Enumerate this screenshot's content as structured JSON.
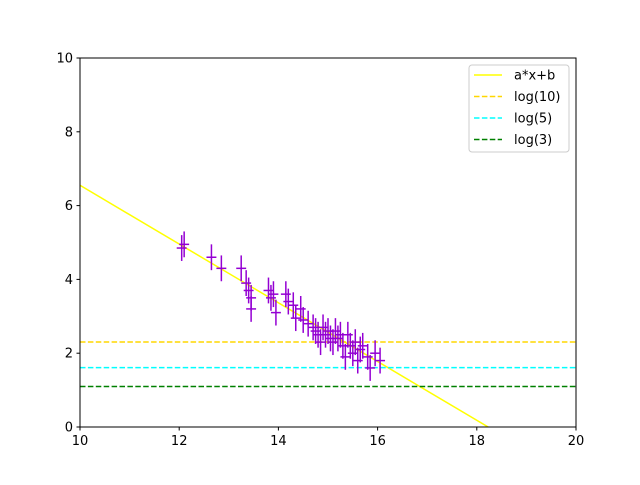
{
  "chart_data": {
    "type": "scatter",
    "title": "",
    "xlabel": "",
    "ylabel": "",
    "xlim": [
      10,
      20
    ],
    "ylim": [
      0,
      10
    ],
    "xticks": [
      "10",
      "12",
      "14",
      "16",
      "18",
      "20"
    ],
    "yticks": [
      "0",
      "2",
      "4",
      "6",
      "8",
      "10"
    ],
    "grid": false,
    "legend_position": "top-right",
    "fit_line": {
      "name": "a*x+b",
      "slope": -0.796,
      "intercept": 14.51,
      "color": "#ffff00"
    },
    "hlines": [
      {
        "name": "log(10)",
        "y": 2.303,
        "color": "#ffd700"
      },
      {
        "name": "log(5)",
        "y": 1.609,
        "color": "#00ffff"
      },
      {
        "name": "log(3)",
        "y": 1.099,
        "color": "#008000"
      }
    ],
    "points_color": "#9400d3",
    "x_err": 0.1,
    "y_err": 0.35,
    "points": [
      [
        12.05,
        4.85
      ],
      [
        12.1,
        4.95
      ],
      [
        12.65,
        4.6
      ],
      [
        12.85,
        4.3
      ],
      [
        13.25,
        4.3
      ],
      [
        13.35,
        3.9
      ],
      [
        13.4,
        3.7
      ],
      [
        13.45,
        3.5
      ],
      [
        13.45,
        3.2
      ],
      [
        13.8,
        3.7
      ],
      [
        13.85,
        3.5
      ],
      [
        13.9,
        3.6
      ],
      [
        13.95,
        3.1
      ],
      [
        14.15,
        3.6
      ],
      [
        14.2,
        3.4
      ],
      [
        14.3,
        3.3
      ],
      [
        14.35,
        2.95
      ],
      [
        14.45,
        3.2
      ],
      [
        14.5,
        2.9
      ],
      [
        14.6,
        2.8
      ],
      [
        14.7,
        2.7
      ],
      [
        14.75,
        2.6
      ],
      [
        14.8,
        2.5
      ],
      [
        14.85,
        2.3
      ],
      [
        14.9,
        2.7
      ],
      [
        14.95,
        2.5
      ],
      [
        15.0,
        2.6
      ],
      [
        15.05,
        2.4
      ],
      [
        15.1,
        2.3
      ],
      [
        15.15,
        2.6
      ],
      [
        15.2,
        2.4
      ],
      [
        15.25,
        2.5
      ],
      [
        15.3,
        2.2
      ],
      [
        15.35,
        1.9
      ],
      [
        15.4,
        2.5
      ],
      [
        15.45,
        2.2
      ],
      [
        15.5,
        2.0
      ],
      [
        15.55,
        2.3
      ],
      [
        15.6,
        1.8
      ],
      [
        15.65,
        2.1
      ],
      [
        15.7,
        2.2
      ],
      [
        15.8,
        1.9
      ],
      [
        15.85,
        1.6
      ],
      [
        15.95,
        2.0
      ],
      [
        16.05,
        1.8
      ]
    ]
  }
}
